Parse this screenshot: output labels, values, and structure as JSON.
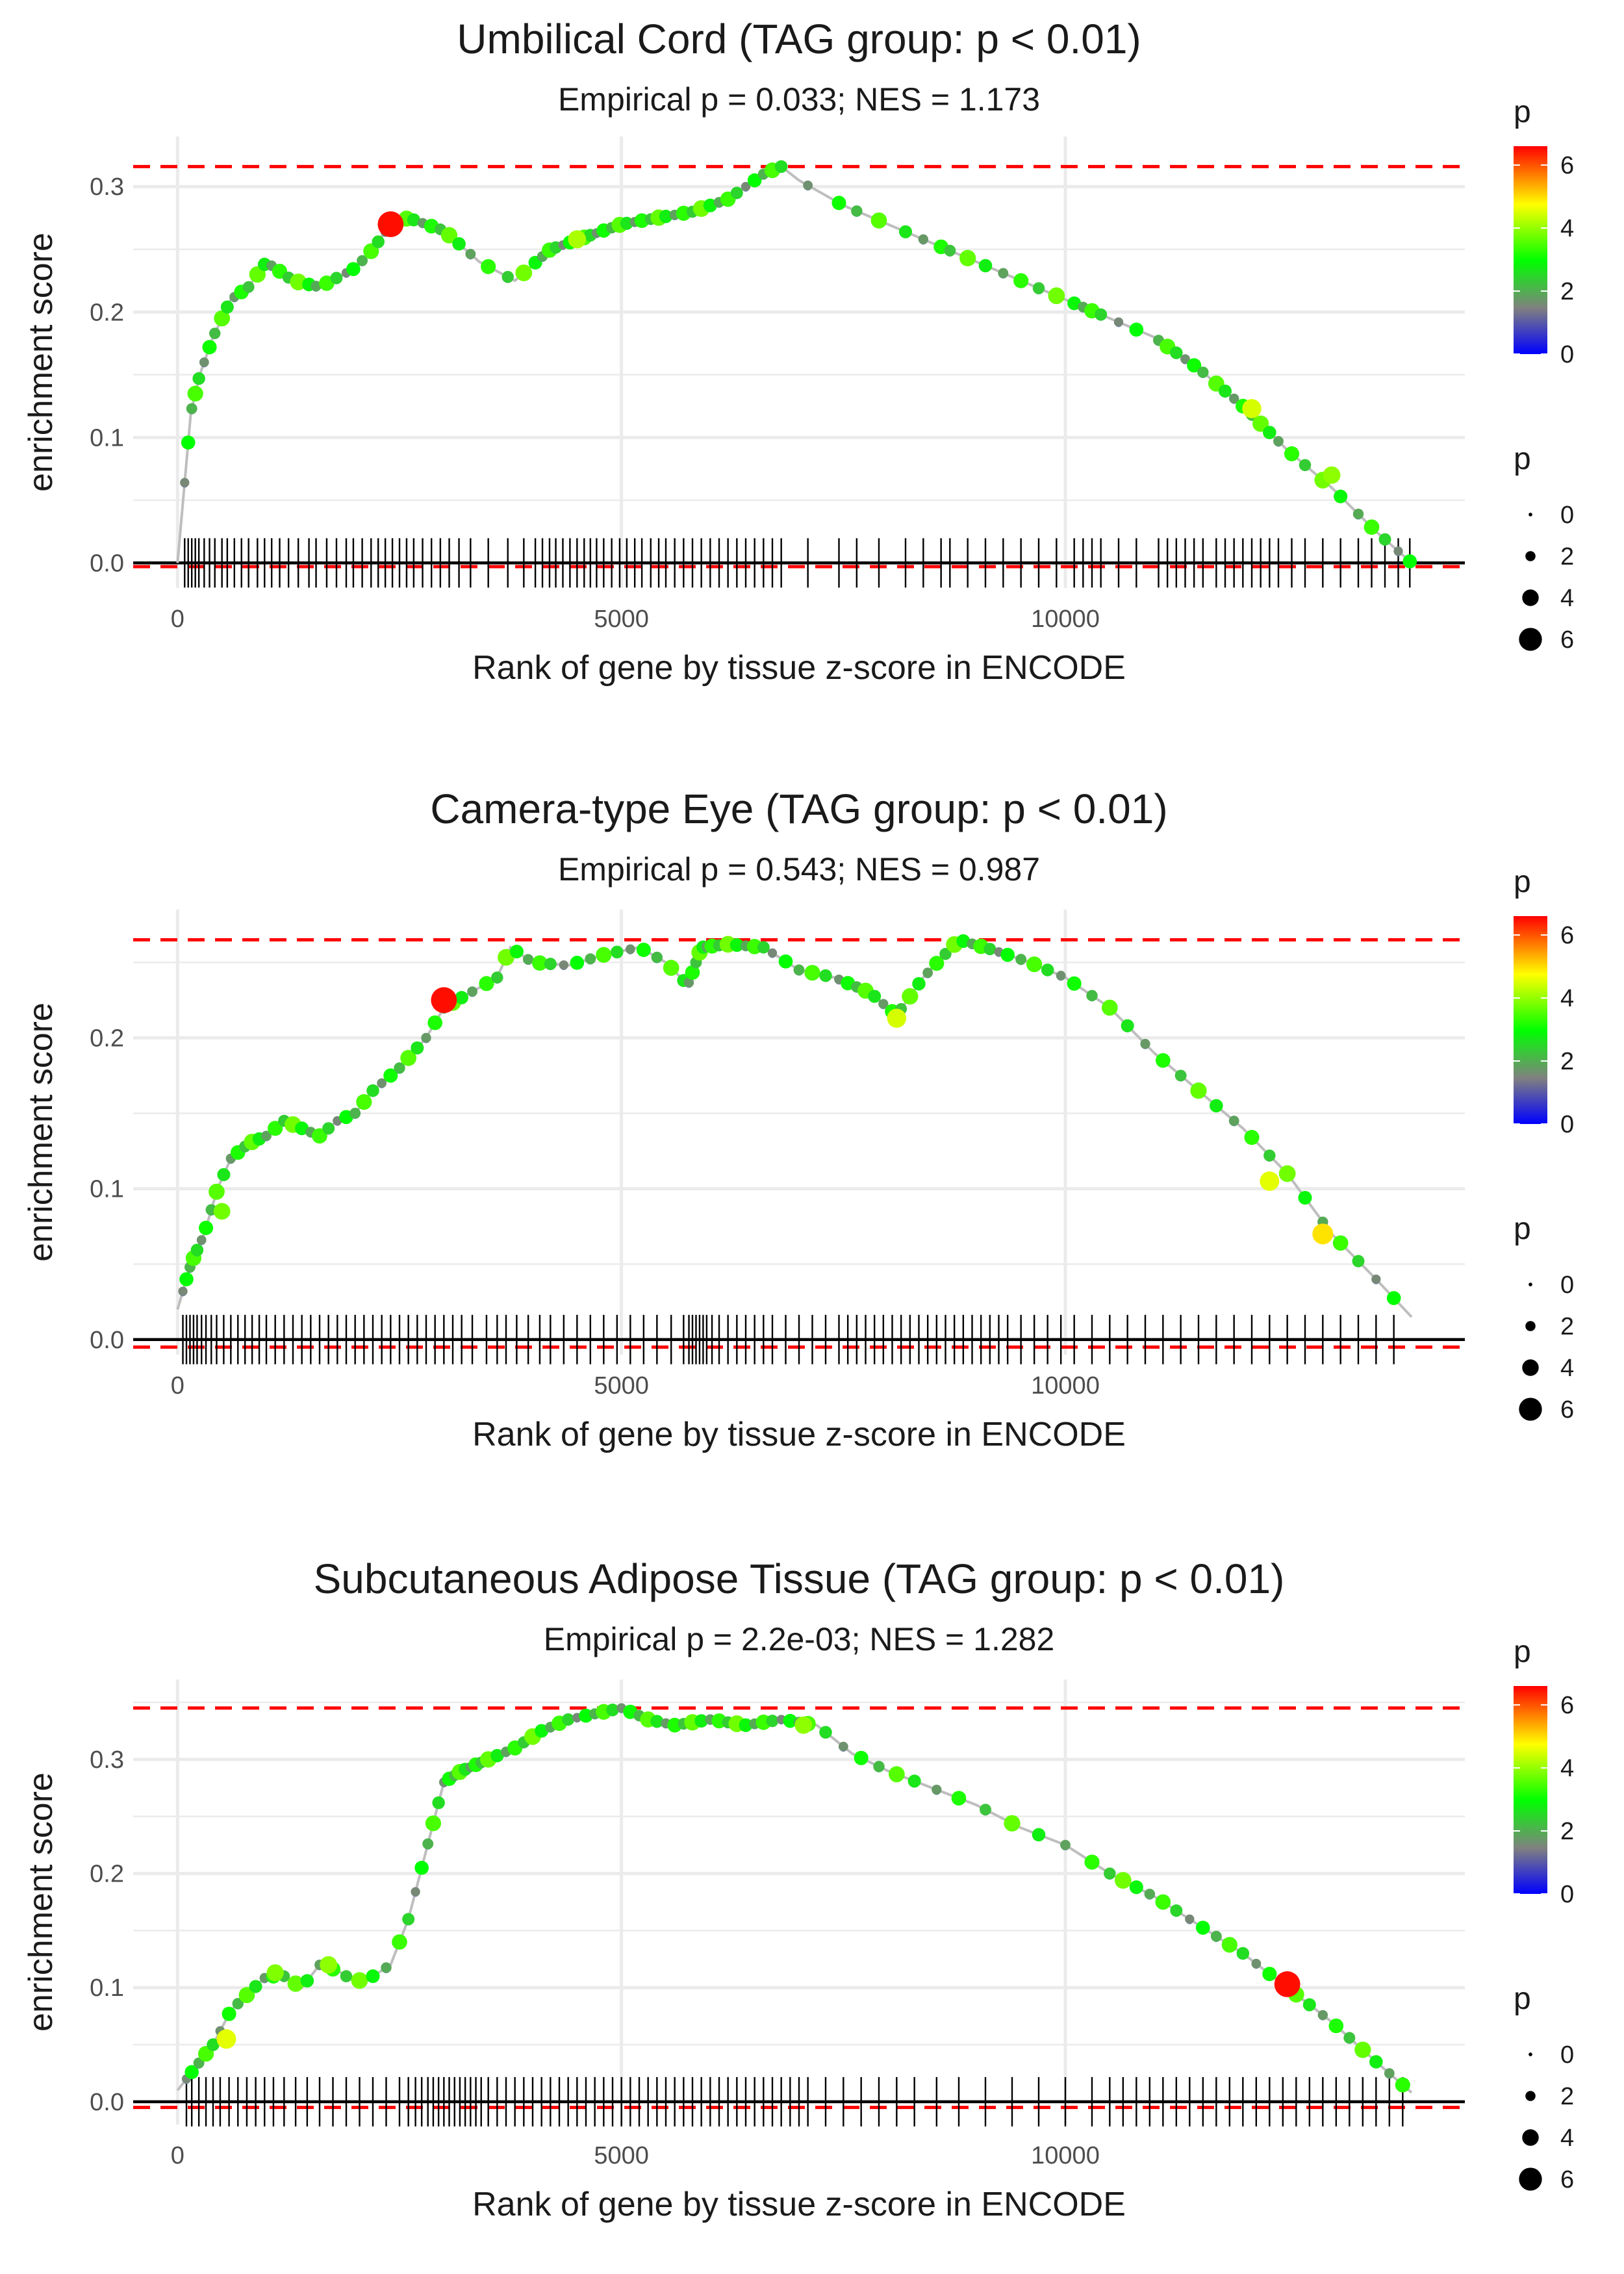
{
  "chart_data": [
    {
      "type": "line",
      "title": "Umbilical Cord (TAG group: p < 0.01)",
      "subtitle": "Empirical p = 0.033; NES = 1.173",
      "xlabel": "Rank of gene by tissue z-score in ENCODE",
      "ylabel": "enrichment score",
      "xlim": [
        -500,
        14500
      ],
      "ylim": [
        -0.02,
        0.34
      ],
      "xticks": [
        0,
        5000,
        10000
      ],
      "xtick_labels": [
        "0",
        "5000",
        "10000"
      ],
      "yticks": [
        0.0,
        0.1,
        0.2,
        0.3
      ],
      "ytick_labels": [
        "0.0",
        "0.1",
        "0.2",
        "0.3"
      ],
      "max_es": 0.316,
      "min_es": -0.003,
      "x": [
        0,
        100,
        150,
        250,
        400,
        600,
        800,
        1000,
        1300,
        1600,
        2000,
        2200,
        2400,
        2600,
        3000,
        3400,
        3800,
        4200,
        4600,
        5000,
        5400,
        5800,
        6200,
        6600,
        6800,
        7000,
        7500,
        8000,
        8500,
        9000,
        9500,
        10000,
        10500,
        11000,
        11500,
        12000,
        12500,
        13000,
        13500,
        13900
      ],
      "y": [
        0.0,
        0.08,
        0.12,
        0.15,
        0.18,
        0.21,
        0.22,
        0.24,
        0.225,
        0.22,
        0.235,
        0.25,
        0.27,
        0.275,
        0.265,
        0.24,
        0.225,
        0.25,
        0.26,
        0.27,
        0.275,
        0.28,
        0.29,
        0.31,
        0.316,
        0.305,
        0.285,
        0.27,
        0.255,
        0.24,
        0.225,
        0.21,
        0.195,
        0.18,
        0.155,
        0.125,
        0.09,
        0.06,
        0.025,
        0.0
      ],
      "highlight_points": [
        {
          "x": 2400,
          "y": 0.27,
          "p": 6.5
        },
        {
          "x": 12100,
          "y": 0.123,
          "p": 4.5
        },
        {
          "x": 13000,
          "y": 0.07,
          "p": 4.0
        },
        {
          "x": 4500,
          "y": 0.258,
          "p": 4.2
        }
      ],
      "rug_x": [
        80,
        120,
        160,
        200,
        240,
        300,
        360,
        420,
        500,
        560,
        640,
        720,
        800,
        900,
        980,
        1060,
        1150,
        1250,
        1360,
        1480,
        1560,
        1680,
        1790,
        1900,
        1980,
        2080,
        2180,
        2260,
        2340,
        2420,
        2500,
        2580,
        2660,
        2760,
        2860,
        2960,
        3060,
        3170,
        3300,
        3500,
        3720,
        3900,
        4030,
        4110,
        4190,
        4260,
        4340,
        4420,
        4500,
        4580,
        4650,
        4720,
        4800,
        4890,
        4980,
        5060,
        5150,
        5230,
        5330,
        5420,
        5500,
        5600,
        5700,
        5800,
        5900,
        6000,
        6100,
        6200,
        6300,
        6400,
        6500,
        6600,
        6700,
        6800,
        7100,
        7450,
        7650,
        7900,
        8200,
        8400,
        8600,
        8700,
        8900,
        9100,
        9300,
        9500,
        9700,
        9900,
        10100,
        10200,
        10300,
        10400,
        10600,
        10800,
        11050,
        11150,
        11250,
        11350,
        11450,
        11550,
        11700,
        11800,
        11900,
        12000,
        12100,
        12200,
        12300,
        12400,
        12550,
        12700,
        12900,
        13100,
        13300,
        13450,
        13600,
        13750,
        13880
      ]
    },
    {
      "type": "line",
      "title": "Camera-type Eye (TAG group: p < 0.01)",
      "subtitle": "Empirical p = 0.543; NES = 0.987",
      "xlabel": "Rank of gene by tissue z-score in ENCODE",
      "ylabel": "enrichment score",
      "xlim": [
        -500,
        14500
      ],
      "ylim": [
        -0.01,
        0.285
      ],
      "xticks": [
        0,
        5000,
        10000
      ],
      "xtick_labels": [
        "0",
        "5000",
        "10000"
      ],
      "yticks": [
        0.0,
        0.1,
        0.2
      ],
      "ytick_labels": [
        "0.0",
        "0.1",
        "0.2"
      ],
      "max_es": 0.265,
      "min_es": -0.005,
      "x": [
        0,
        150,
        300,
        450,
        600,
        800,
        1000,
        1200,
        1400,
        1600,
        1800,
        2000,
        2200,
        2500,
        2800,
        3000,
        3300,
        3600,
        3750,
        4000,
        4400,
        4800,
        5200,
        5500,
        5750,
        5900,
        6200,
        6600,
        7000,
        7400,
        7800,
        8100,
        8400,
        8800,
        9200,
        9600,
        10000,
        10500,
        11000,
        11500,
        12000,
        12500,
        13000,
        13500,
        13900
      ],
      "y": [
        0.02,
        0.05,
        0.07,
        0.1,
        0.12,
        0.13,
        0.135,
        0.145,
        0.14,
        0.135,
        0.145,
        0.15,
        0.165,
        0.18,
        0.2,
        0.22,
        0.23,
        0.24,
        0.26,
        0.25,
        0.248,
        0.255,
        0.26,
        0.25,
        0.235,
        0.26,
        0.262,
        0.26,
        0.245,
        0.24,
        0.23,
        0.215,
        0.24,
        0.265,
        0.258,
        0.25,
        0.24,
        0.22,
        0.19,
        0.165,
        0.14,
        0.11,
        0.07,
        0.04,
        0.015
      ],
      "highlight_points": [
        {
          "x": 3000,
          "y": 0.225,
          "p": 6.5
        },
        {
          "x": 8100,
          "y": 0.213,
          "p": 4.5
        },
        {
          "x": 12300,
          "y": 0.105,
          "p": 4.6
        },
        {
          "x": 12900,
          "y": 0.07,
          "p": 5.0
        },
        {
          "x": 500,
          "y": 0.085,
          "p": 3.8
        }
      ],
      "rug_x": [
        60,
        100,
        140,
        180,
        220,
        270,
        320,
        380,
        440,
        520,
        600,
        680,
        760,
        840,
        920,
        1000,
        1100,
        1200,
        1300,
        1400,
        1500,
        1600,
        1700,
        1800,
        1900,
        2000,
        2100,
        2200,
        2300,
        2400,
        2500,
        2600,
        2700,
        2800,
        2900,
        3000,
        3100,
        3200,
        3320,
        3480,
        3600,
        3700,
        3820,
        3950,
        4080,
        4200,
        4350,
        4500,
        4650,
        4800,
        4950,
        5100,
        5250,
        5400,
        5560,
        5700,
        5760,
        5800,
        5840,
        5880,
        5920,
        5960,
        6020,
        6100,
        6200,
        6300,
        6400,
        6500,
        6600,
        6700,
        6850,
        7000,
        7150,
        7300,
        7450,
        7550,
        7650,
        7750,
        7850,
        7950,
        8050,
        8150,
        8250,
        8350,
        8450,
        8550,
        8650,
        8750,
        8850,
        8950,
        9050,
        9150,
        9250,
        9350,
        9500,
        9650,
        9800,
        9950,
        10100,
        10300,
        10500,
        10700,
        10900,
        11100,
        11300,
        11500,
        11700,
        11900,
        12100,
        12300,
        12500,
        12700,
        12900,
        13100,
        13300,
        13500,
        13700
      ]
    },
    {
      "type": "line",
      "title": "Subcutaneous Adipose Tissue (TAG group: p < 0.01)",
      "subtitle": "Empirical p = 2.2e-03; NES = 1.282",
      "xlabel": "Rank of gene by tissue z-score in ENCODE",
      "ylabel": "enrichment score",
      "xlim": [
        -500,
        14500
      ],
      "ylim": [
        -0.02,
        0.37
      ],
      "xticks": [
        0,
        5000,
        10000
      ],
      "xtick_labels": [
        "0",
        "5000",
        "10000"
      ],
      "yticks": [
        0.0,
        0.1,
        0.2,
        0.3
      ],
      "ytick_labels": [
        "0.0",
        "0.1",
        "0.2",
        "0.3"
      ],
      "max_es": 0.345,
      "min_es": -0.005,
      "x": [
        0,
        200,
        400,
        600,
        800,
        1000,
        1200,
        1400,
        1600,
        1800,
        2000,
        2200,
        2400,
        2600,
        2800,
        3000,
        3200,
        3500,
        3800,
        4100,
        4400,
        4700,
        5000,
        5300,
        5600,
        6000,
        6400,
        6800,
        7200,
        7600,
        8000,
        8500,
        9000,
        9500,
        10000,
        10500,
        11000,
        11500,
        12000,
        12500,
        13000,
        13500,
        13900
      ],
      "y": [
        0.01,
        0.03,
        0.05,
        0.08,
        0.095,
        0.11,
        0.11,
        0.1,
        0.12,
        0.115,
        0.105,
        0.11,
        0.12,
        0.16,
        0.22,
        0.28,
        0.29,
        0.3,
        0.31,
        0.325,
        0.335,
        0.34,
        0.345,
        0.335,
        0.33,
        0.335,
        0.33,
        0.335,
        0.33,
        0.305,
        0.29,
        0.275,
        0.26,
        0.24,
        0.225,
        0.2,
        0.18,
        0.155,
        0.13,
        0.1,
        0.07,
        0.035,
        0.008
      ],
      "highlight_points": [
        {
          "x": 12500,
          "y": 0.103,
          "p": 6.5
        },
        {
          "x": 1700,
          "y": 0.12,
          "p": 4.0
        },
        {
          "x": 1100,
          "y": 0.113,
          "p": 3.9
        },
        {
          "x": 550,
          "y": 0.055,
          "p": 4.6
        },
        {
          "x": 7050,
          "y": 0.33,
          "p": 4.0
        }
      ],
      "rug_x": [
        100,
        160,
        240,
        320,
        400,
        480,
        580,
        680,
        780,
        880,
        980,
        1080,
        1200,
        1330,
        1460,
        1600,
        1750,
        1900,
        2050,
        2200,
        2350,
        2500,
        2600,
        2680,
        2750,
        2820,
        2880,
        2940,
        3000,
        3060,
        3120,
        3180,
        3240,
        3300,
        3360,
        3420,
        3500,
        3600,
        3700,
        3800,
        3900,
        4000,
        4100,
        4200,
        4300,
        4400,
        4500,
        4600,
        4700,
        4800,
        4900,
        5000,
        5100,
        5200,
        5300,
        5400,
        5500,
        5600,
        5700,
        5800,
        5900,
        6000,
        6100,
        6200,
        6300,
        6400,
        6500,
        6600,
        6700,
        6800,
        6900,
        7000,
        7100,
        7300,
        7500,
        7700,
        7900,
        8100,
        8300,
        8550,
        8800,
        9100,
        9400,
        9700,
        10000,
        10300,
        10500,
        10650,
        10800,
        10950,
        11100,
        11250,
        11400,
        11550,
        11700,
        11850,
        12000,
        12150,
        12300,
        12450,
        12600,
        12750,
        12900,
        13050,
        13200,
        13350,
        13500,
        13650,
        13800
      ]
    }
  ],
  "legend": {
    "color_title": "p",
    "size_title": "p",
    "color_ticks": [
      "0",
      "2",
      "4",
      "6"
    ],
    "size_items": [
      "0",
      "2",
      "4",
      "6"
    ],
    "gradient_colors": [
      "#0000ff",
      "#808080",
      "#00ff00",
      "#ffff00",
      "#ff0000"
    ]
  },
  "colors": {
    "dashed": "#ff0000",
    "line": "#bebebe",
    "grid": "#ebebeb",
    "rug": "#000000",
    "zero": "#000000"
  }
}
